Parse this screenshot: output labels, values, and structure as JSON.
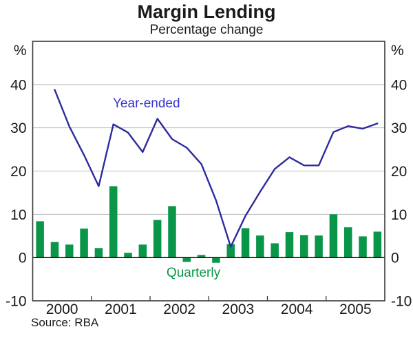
{
  "title": "Margin Lending",
  "subtitle": "Percentage change",
  "source": "Source: RBA",
  "series_labels": {
    "line": "Year-ended",
    "bar": "Quarterly"
  },
  "axis": {
    "unit_left": "%",
    "unit_right": "%",
    "ymin": -10,
    "ymax": 50,
    "y_tick_labels": [
      40,
      30,
      20,
      10,
      0,
      -10
    ],
    "y_gridlines": [
      40,
      30,
      20,
      10
    ],
    "x_year_labels": [
      "2000",
      "2001",
      "2002",
      "2003",
      "2004",
      "2005"
    ]
  },
  "colors": {
    "bar": "#0a9648",
    "line": "#2b2b9d",
    "line_label": "#3434cb",
    "bar_label": "#0a9648",
    "grid": "#b9b9b9",
    "frame": "#3a3a3a",
    "zero_line": "#111111",
    "text": "#1a1a1a"
  },
  "chart_data": {
    "type": "bar+line",
    "title": "Margin Lending",
    "subtitle": "Percentage change",
    "ylabel": "%",
    "ylim": [
      -10,
      50
    ],
    "grid": true,
    "gridline_values": [
      10,
      20,
      30,
      40
    ],
    "legend_position": "inline-labels",
    "categories": [
      "2000Q1",
      "2000Q2",
      "2000Q3",
      "2000Q4",
      "2001Q1",
      "2001Q2",
      "2001Q3",
      "2001Q4",
      "2002Q1",
      "2002Q2",
      "2002Q3",
      "2002Q4",
      "2003Q1",
      "2003Q2",
      "2003Q3",
      "2003Q4",
      "2004Q1",
      "2004Q2",
      "2004Q3",
      "2004Q4",
      "2005Q1",
      "2005Q2",
      "2005Q3",
      "2005Q4"
    ],
    "series": [
      {
        "name": "Quarterly",
        "type": "bar",
        "values": [
          8.4,
          3.6,
          3.0,
          6.7,
          2.2,
          16.5,
          1.1,
          3.0,
          8.7,
          11.9,
          -1.0,
          0.6,
          -1.2,
          3.1,
          6.8,
          5.1,
          3.3,
          5.9,
          5.2,
          5.1,
          10.0,
          7.0,
          4.9,
          6.0
        ]
      },
      {
        "name": "Year-ended",
        "type": "line",
        "values": [
          null,
          38.8,
          30.3,
          23.7,
          16.5,
          30.8,
          28.9,
          24.4,
          32.1,
          27.4,
          25.4,
          21.6,
          13.2,
          2.5,
          9.6,
          15.2,
          20.5,
          23.2,
          21.3,
          21.3,
          29.0,
          30.4,
          29.8,
          31.0
        ]
      }
    ]
  }
}
